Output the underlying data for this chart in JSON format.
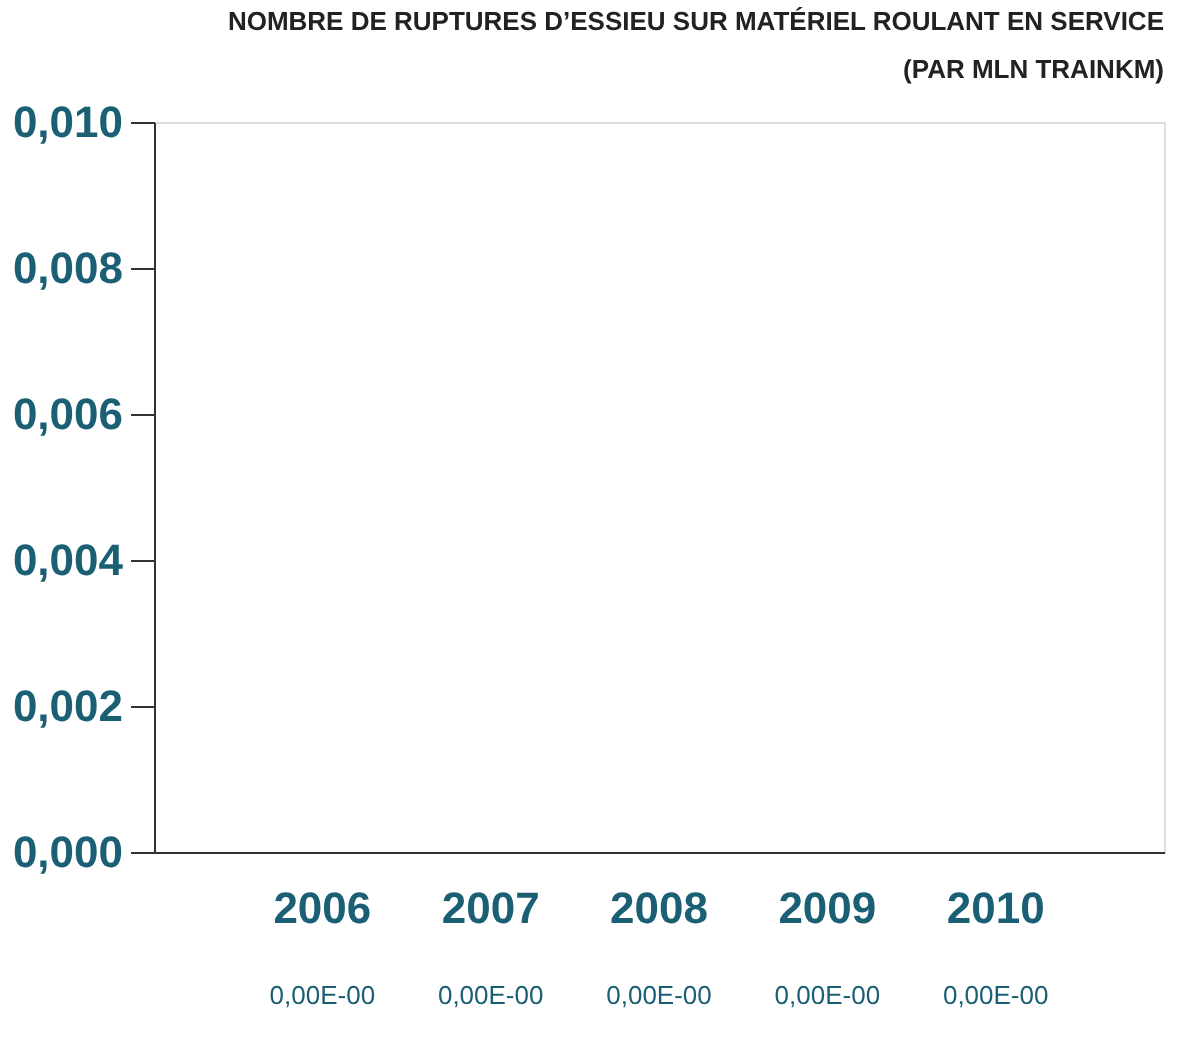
{
  "chart_data": {
    "type": "bar",
    "title": [
      "NOMBRE DE RUPTURES D’ESSIEU SUR MATÉRIEL ROULANT EN SERVICE",
      "(PAR MLN TRAINKM)"
    ],
    "categories": [
      "2006",
      "2007",
      "2008",
      "2009",
      "2010"
    ],
    "values": [
      0,
      0,
      0,
      0,
      0
    ],
    "value_labels": [
      "0,00E-00",
      "0,00E-00",
      "0,00E-00",
      "0,00E-00",
      "0,00E-00"
    ],
    "color": "#1a5f73",
    "ylim": [
      0,
      0.01
    ],
    "yticks": [
      {
        "value": 0,
        "label": "0,000"
      },
      {
        "value": 0.002,
        "label": "0,002"
      },
      {
        "value": 0.004,
        "label": "0,004"
      },
      {
        "value": 0.006,
        "label": "0,006"
      },
      {
        "value": 0.008,
        "label": "0,008"
      },
      {
        "value": 0.01,
        "label": "0,010"
      }
    ],
    "grid": false
  }
}
